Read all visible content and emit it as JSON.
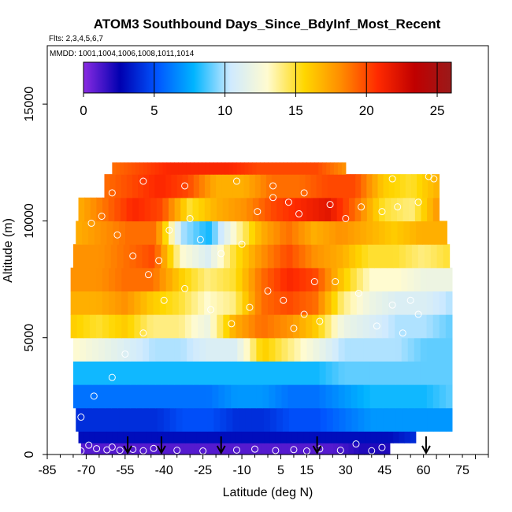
{
  "chart_data": {
    "type": "heatmap",
    "title": "ATOM3 Southbound Days_Since_BdyInf_Most_Recent",
    "flights_label": "Flts: 2,3,4,5,6,7",
    "mmdd_label": "MMDD: 1001,1004,1006,1008,1011,1014",
    "xlabel": "Latitude (deg N)",
    "ylabel": "Altitude (m)",
    "xlim": [
      -85,
      85
    ],
    "ylim": [
      0,
      17500
    ],
    "x_tick_labels": [
      "-85",
      "-70",
      "-55",
      "-40",
      "-25",
      "-10",
      "5",
      "15",
      "30",
      "45",
      "60",
      "75"
    ],
    "y_ticks": [
      0,
      5000,
      10000,
      15000
    ],
    "y_tick_labels": [
      "0",
      "5000",
      "10000",
      "15000"
    ],
    "colorbar": {
      "range": [
        0,
        26
      ],
      "ticks": [
        0,
        5,
        10,
        15,
        20,
        25
      ],
      "tick_labels": [
        "0",
        "5",
        "10",
        "15",
        "20",
        "25"
      ],
      "divisions": [
        5,
        10,
        15,
        20,
        25
      ],
      "colors": [
        "#8a2be2",
        "#0000b0",
        "#0055ff",
        "#00b4ff",
        "#cfeaff",
        "#fffbd0",
        "#ffd700",
        "#ff8c00",
        "#ff2a00",
        "#c00000",
        "#9a1a1a"
      ]
    },
    "arrow_latitudes": [
      -54,
      -41,
      -18,
      19,
      61
    ],
    "grid": false,
    "legend": "colorbar top",
    "altitude_rows": [
      {
        "alt_range": [
          0,
          500
        ],
        "lat_range": [
          -72,
          47
        ],
        "values": [
          1,
          1,
          1,
          1,
          1,
          1,
          1,
          1,
          1,
          1,
          2,
          2
        ]
      },
      {
        "alt_range": [
          500,
          1000
        ],
        "lat_range": [
          -73,
          57
        ],
        "values": [
          3,
          3,
          3,
          3,
          3,
          3,
          3,
          3,
          3,
          3,
          3,
          3,
          3,
          4
        ]
      },
      {
        "alt_range": [
          1000,
          2000
        ],
        "lat_range": [
          -74,
          71
        ],
        "values": [
          4,
          4,
          4,
          4,
          5,
          5,
          4,
          4,
          5,
          5,
          6,
          7,
          7,
          7,
          7
        ]
      },
      {
        "alt_range": [
          2000,
          3000
        ],
        "lat_range": [
          -75,
          71
        ],
        "values": [
          6,
          6,
          6,
          6,
          6,
          6,
          7,
          7,
          6,
          6,
          7,
          8,
          8,
          8,
          9
        ]
      },
      {
        "alt_range": [
          3000,
          4000
        ],
        "lat_range": [
          -75,
          71
        ],
        "values": [
          8,
          8,
          8,
          8,
          8,
          8,
          8,
          8,
          8,
          8,
          9,
          9,
          9,
          9,
          9
        ]
      },
      {
        "alt_range": [
          4000,
          5000
        ],
        "lat_range": [
          -75,
          71
        ],
        "values": [
          13,
          12,
          11,
          10,
          10,
          11,
          11,
          16,
          14,
          12,
          10,
          10,
          10,
          9,
          9
        ]
      },
      {
        "alt_range": [
          5000,
          6000
        ],
        "lat_range": [
          -76,
          71
        ],
        "values": [
          16,
          15,
          16,
          14,
          14,
          12,
          17,
          19,
          18,
          16,
          12,
          11,
          10,
          10,
          9
        ]
      },
      {
        "alt_range": [
          6000,
          7000
        ],
        "lat_range": [
          -76,
          71
        ],
        "values": [
          17,
          17,
          18,
          16,
          15,
          13,
          14,
          19,
          20,
          19,
          14,
          12,
          11,
          11,
          10
        ]
      },
      {
        "alt_range": [
          7000,
          8000
        ],
        "lat_range": [
          -76,
          71
        ],
        "values": [
          18,
          18,
          19,
          19,
          16,
          14,
          15,
          19,
          21,
          20,
          16,
          13,
          13,
          12,
          12
        ]
      },
      {
        "alt_range": [
          8000,
          9000
        ],
        "lat_range": [
          -75,
          70
        ],
        "values": [
          18,
          18,
          19,
          20,
          13,
          11,
          15,
          18,
          20,
          18,
          17,
          15,
          15,
          14,
          15
        ]
      },
      {
        "alt_range": [
          9000,
          10000
        ],
        "lat_range": [
          -74,
          69
        ],
        "values": [
          17,
          18,
          19,
          19,
          10,
          8,
          13,
          17,
          19,
          17,
          18,
          17,
          16,
          17,
          17
        ]
      },
      {
        "alt_range": [
          10000,
          11000
        ],
        "lat_range": [
          -73,
          66
        ],
        "values": [
          17,
          19,
          21,
          20,
          15,
          17,
          18,
          20,
          21,
          22,
          19,
          15,
          14,
          18
        ]
      },
      {
        "alt_range": [
          11000,
          12000
        ],
        "lat_range": [
          -63,
          66
        ],
        "values": [
          19,
          20,
          21,
          20,
          17,
          17,
          19,
          19,
          20,
          20,
          16,
          15,
          17
        ]
      },
      {
        "alt_range": [
          12000,
          12500
        ],
        "lat_range": [
          -60,
          30
        ],
        "values": [
          19,
          20,
          21,
          21,
          21,
          20,
          20,
          20,
          18
        ]
      }
    ],
    "observations": [
      [
        -72,
        150
      ],
      [
        -69,
        400
      ],
      [
        -66,
        250
      ],
      [
        -62,
        200
      ],
      [
        -60,
        320
      ],
      [
        -57,
        180
      ],
      [
        -52,
        220
      ],
      [
        -48,
        160
      ],
      [
        -44,
        260
      ],
      [
        -35,
        180
      ],
      [
        -25,
        150
      ],
      [
        -12,
        190
      ],
      [
        -5,
        230
      ],
      [
        3,
        170
      ],
      [
        10,
        210
      ],
      [
        15,
        150
      ],
      [
        20,
        240
      ],
      [
        28,
        180
      ],
      [
        34,
        450
      ],
      [
        40,
        160
      ],
      [
        44,
        300
      ],
      [
        -72,
        1600
      ],
      [
        -67,
        2500
      ],
      [
        -60,
        3300
      ],
      [
        -55,
        4300
      ],
      [
        -48,
        5200
      ],
      [
        -40,
        6600
      ],
      [
        -32,
        7100
      ],
      [
        -22,
        6200
      ],
      [
        -14,
        5600
      ],
      [
        -7,
        6300
      ],
      [
        0,
        7000
      ],
      [
        6,
        6600
      ],
      [
        10,
        5400
      ],
      [
        14,
        6000
      ],
      [
        20,
        5700
      ],
      [
        26,
        7400
      ],
      [
        35,
        6900
      ],
      [
        42,
        5500
      ],
      [
        48,
        6400
      ],
      [
        52,
        5200
      ],
      [
        55,
        6600
      ],
      [
        58,
        6000
      ],
      [
        -68,
        9900
      ],
      [
        -64,
        10200
      ],
      [
        -58,
        9400
      ],
      [
        -52,
        8500
      ],
      [
        -46,
        7700
      ],
      [
        -42,
        8300
      ],
      [
        -38,
        9600
      ],
      [
        -30,
        10100
      ],
      [
        -26,
        9200
      ],
      [
        -18,
        8600
      ],
      [
        -10,
        9000
      ],
      [
        -4,
        10400
      ],
      [
        2,
        11000
      ],
      [
        8,
        10800
      ],
      [
        12,
        10300
      ],
      [
        18,
        7400
      ],
      [
        24,
        10700
      ],
      [
        30,
        10100
      ],
      [
        36,
        10600
      ],
      [
        44,
        10400
      ],
      [
        50,
        10600
      ],
      [
        58,
        10800
      ],
      [
        64,
        11800
      ],
      [
        -60,
        11200
      ],
      [
        -48,
        11700
      ],
      [
        -32,
        11500
      ],
      [
        -12,
        11700
      ],
      [
        2,
        11500
      ],
      [
        14,
        11200
      ],
      [
        48,
        11800
      ],
      [
        62,
        11900
      ]
    ]
  }
}
